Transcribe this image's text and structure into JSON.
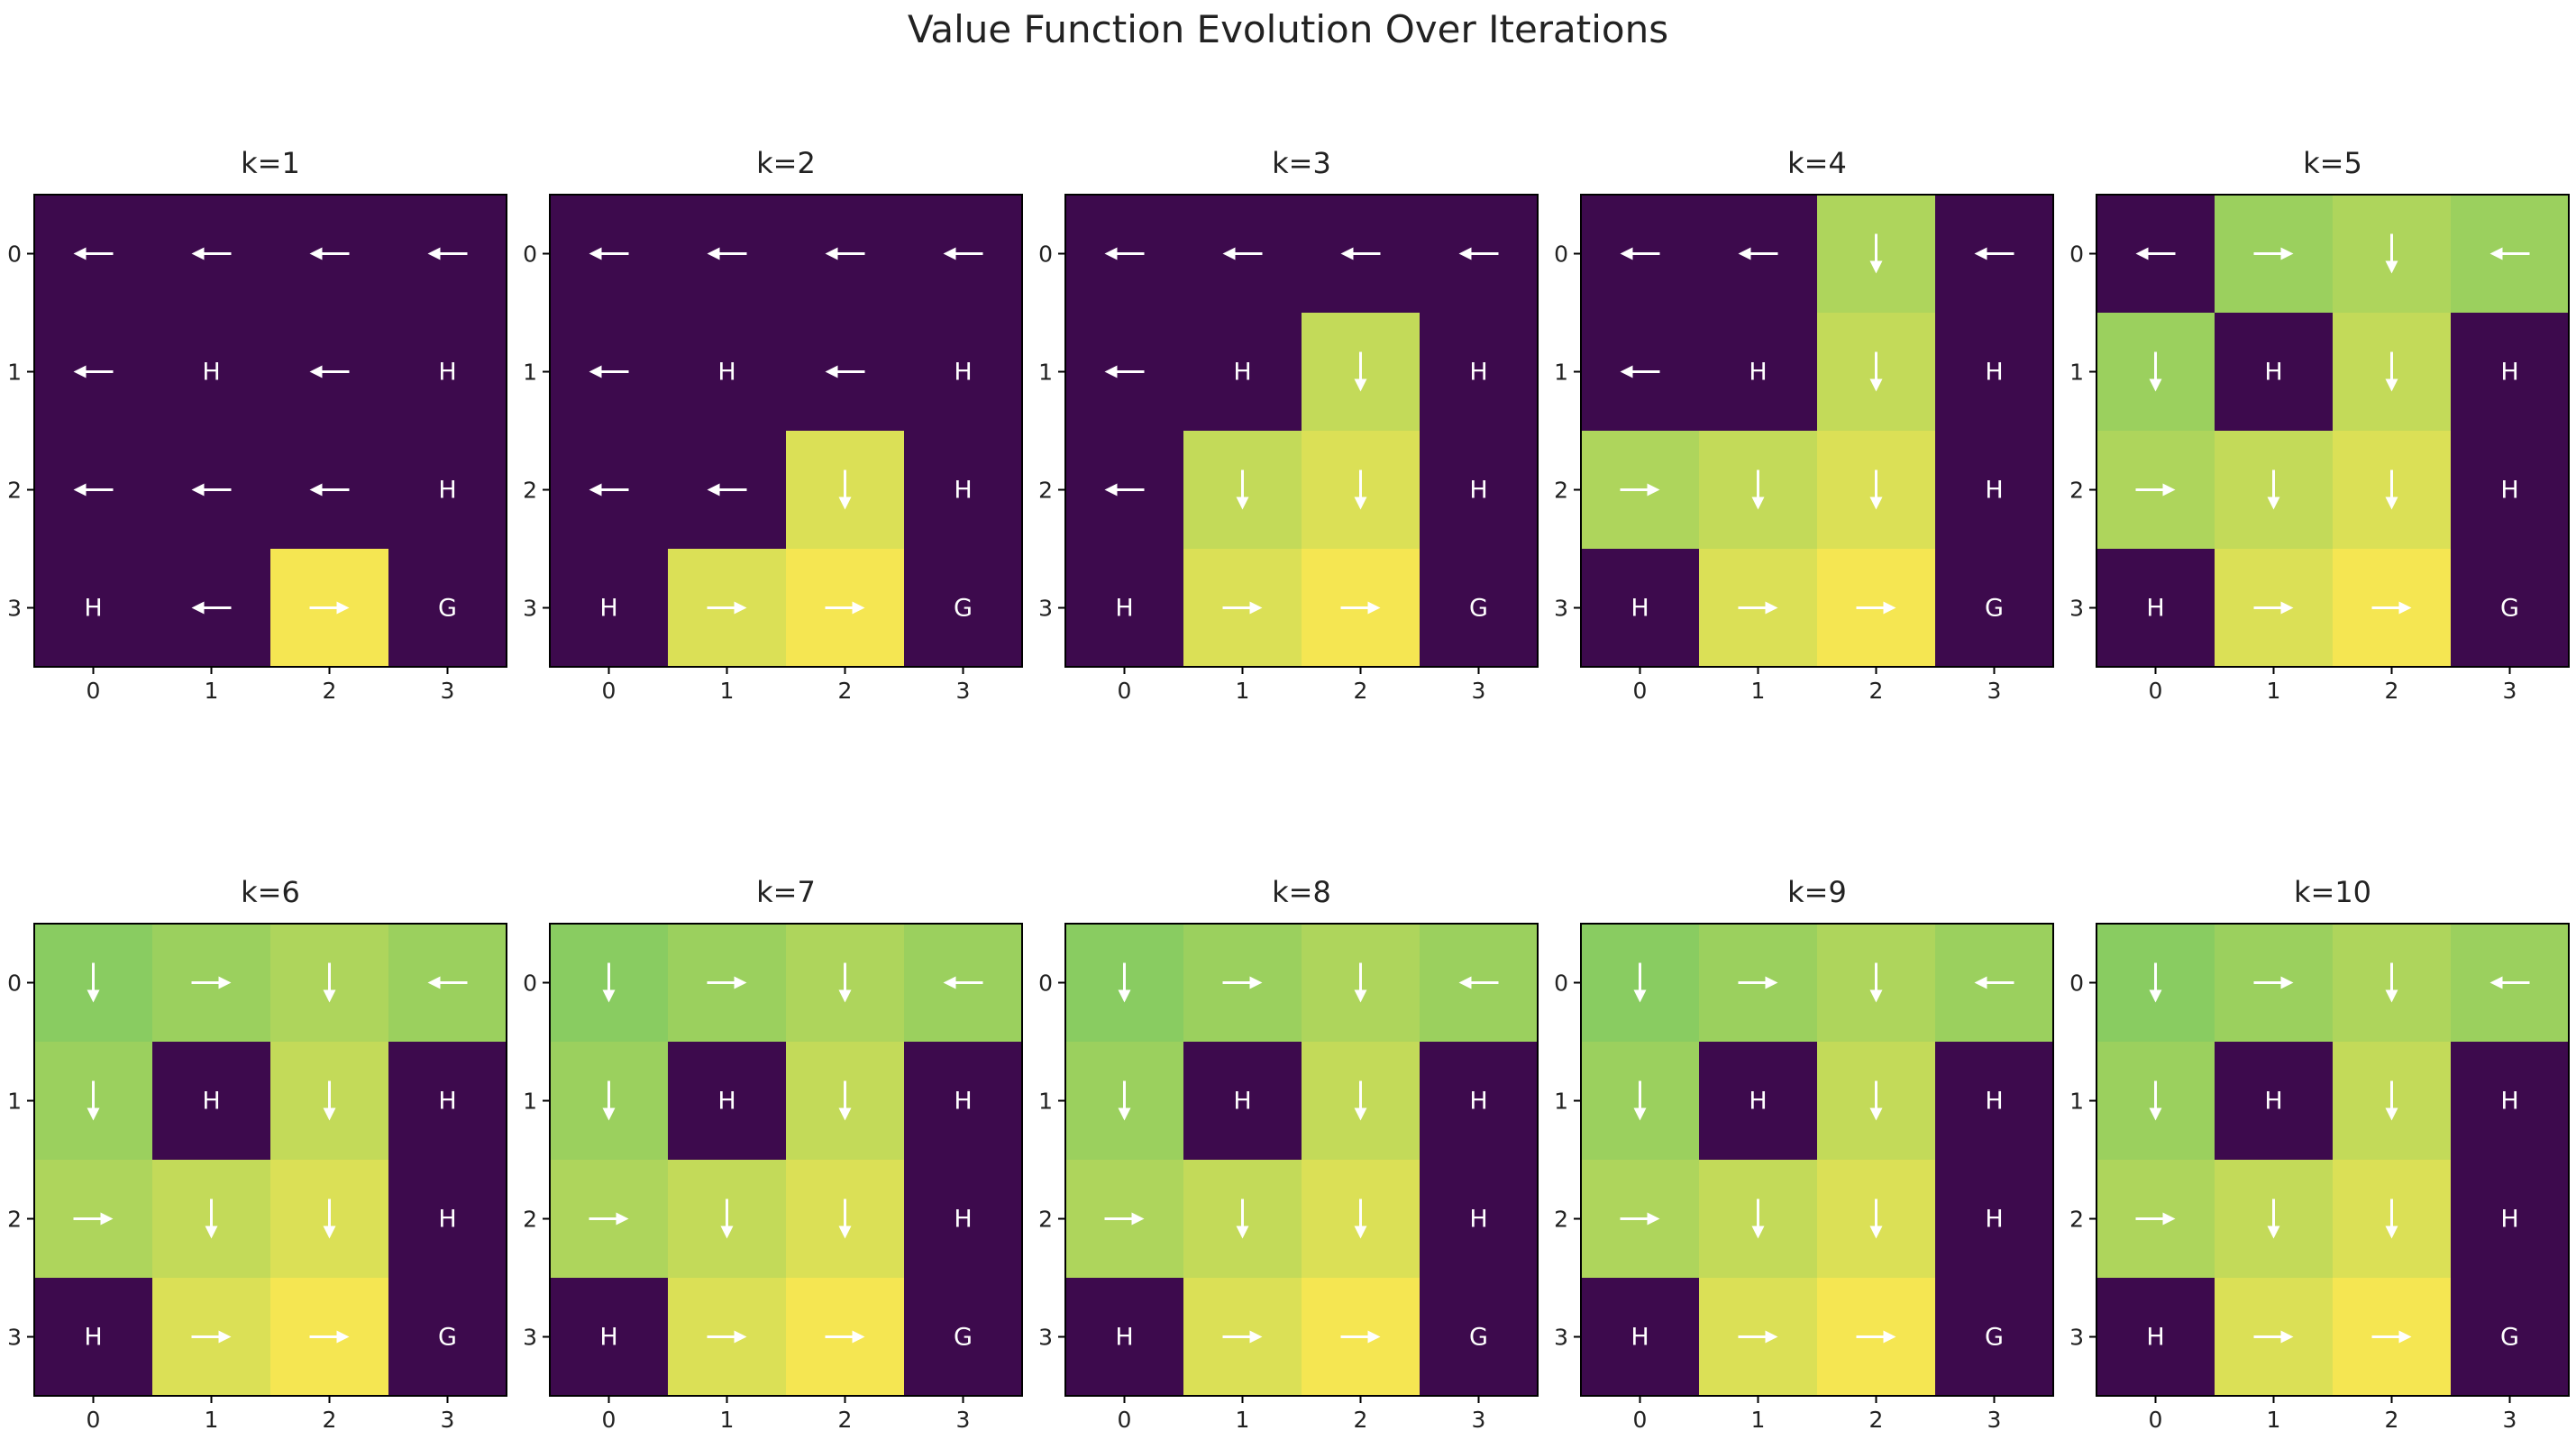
{
  "title": "Value Function Evolution Over Iterations",
  "colors": {
    "dark": "#3d0a4d",
    "scale_low": "#7ec962",
    "scale_high": "#f5e652",
    "arrow": "#ffffff",
    "label_text": "#ffffff",
    "axis_text": "#222222"
  },
  "chart_data": {
    "type": "heatmap",
    "ticks": [
      "0",
      "1",
      "2",
      "3"
    ],
    "vmin": 0,
    "vmax": 1,
    "panels": [
      {
        "title": "k=1",
        "values": [
          [
            0,
            0,
            0,
            0
          ],
          [
            0,
            0,
            0,
            0
          ],
          [
            0,
            0,
            0,
            0
          ],
          [
            0,
            0,
            1.0,
            0
          ]
        ],
        "policy": [
          [
            "←",
            "←",
            "←",
            "←"
          ],
          [
            "←",
            "H",
            "←",
            "H"
          ],
          [
            "←",
            "←",
            "←",
            "H"
          ],
          [
            "H",
            "←",
            "→",
            "G"
          ]
        ]
      },
      {
        "title": "k=2",
        "values": [
          [
            0,
            0,
            0,
            0
          ],
          [
            0,
            0,
            0,
            0
          ],
          [
            0,
            0,
            0.9,
            0
          ],
          [
            0,
            0.9,
            1.0,
            0
          ]
        ],
        "policy": [
          [
            "←",
            "←",
            "←",
            "←"
          ],
          [
            "←",
            "H",
            "←",
            "H"
          ],
          [
            "←",
            "←",
            "↓",
            "H"
          ],
          [
            "H",
            "→",
            "→",
            "G"
          ]
        ]
      },
      {
        "title": "k=3",
        "values": [
          [
            0,
            0,
            0,
            0
          ],
          [
            0,
            0,
            0.81,
            0
          ],
          [
            0,
            0.81,
            0.9,
            0
          ],
          [
            0,
            0.9,
            1.0,
            0
          ]
        ],
        "policy": [
          [
            "←",
            "←",
            "←",
            "←"
          ],
          [
            "←",
            "H",
            "↓",
            "H"
          ],
          [
            "←",
            "↓",
            "↓",
            "H"
          ],
          [
            "H",
            "→",
            "→",
            "G"
          ]
        ]
      },
      {
        "title": "k=4",
        "values": [
          [
            0,
            0,
            0.73,
            0
          ],
          [
            0,
            0,
            0.81,
            0
          ],
          [
            0.73,
            0.81,
            0.9,
            0
          ],
          [
            0,
            0.9,
            1.0,
            0
          ]
        ],
        "policy": [
          [
            "←",
            "←",
            "↓",
            "←"
          ],
          [
            "←",
            "H",
            "↓",
            "H"
          ],
          [
            "→",
            "↓",
            "↓",
            "H"
          ],
          [
            "H",
            "→",
            "→",
            "G"
          ]
        ]
      },
      {
        "title": "k=5",
        "values": [
          [
            0,
            0.66,
            0.73,
            0.66
          ],
          [
            0.66,
            0,
            0.81,
            0
          ],
          [
            0.73,
            0.81,
            0.9,
            0
          ],
          [
            0,
            0.9,
            1.0,
            0
          ]
        ],
        "policy": [
          [
            "←",
            "→",
            "↓",
            "←"
          ],
          [
            "↓",
            "H",
            "↓",
            "H"
          ],
          [
            "→",
            "↓",
            "↓",
            "H"
          ],
          [
            "H",
            "→",
            "→",
            "G"
          ]
        ]
      },
      {
        "title": "k=6",
        "values": [
          [
            0.59,
            0.66,
            0.73,
            0.66
          ],
          [
            0.66,
            0,
            0.81,
            0
          ],
          [
            0.73,
            0.81,
            0.9,
            0
          ],
          [
            0,
            0.9,
            1.0,
            0
          ]
        ],
        "policy": [
          [
            "↓",
            "→",
            "↓",
            "←"
          ],
          [
            "↓",
            "H",
            "↓",
            "H"
          ],
          [
            "→",
            "↓",
            "↓",
            "H"
          ],
          [
            "H",
            "→",
            "→",
            "G"
          ]
        ]
      },
      {
        "title": "k=7",
        "values": [
          [
            0.59,
            0.66,
            0.73,
            0.66
          ],
          [
            0.66,
            0,
            0.81,
            0
          ],
          [
            0.73,
            0.81,
            0.9,
            0
          ],
          [
            0,
            0.9,
            1.0,
            0
          ]
        ],
        "policy": [
          [
            "↓",
            "→",
            "↓",
            "←"
          ],
          [
            "↓",
            "H",
            "↓",
            "H"
          ],
          [
            "→",
            "↓",
            "↓",
            "H"
          ],
          [
            "H",
            "→",
            "→",
            "G"
          ]
        ]
      },
      {
        "title": "k=8",
        "values": [
          [
            0.59,
            0.66,
            0.73,
            0.66
          ],
          [
            0.66,
            0,
            0.81,
            0
          ],
          [
            0.73,
            0.81,
            0.9,
            0
          ],
          [
            0,
            0.9,
            1.0,
            0
          ]
        ],
        "policy": [
          [
            "↓",
            "→",
            "↓",
            "←"
          ],
          [
            "↓",
            "H",
            "↓",
            "H"
          ],
          [
            "→",
            "↓",
            "↓",
            "H"
          ],
          [
            "H",
            "→",
            "→",
            "G"
          ]
        ]
      },
      {
        "title": "k=9",
        "values": [
          [
            0.59,
            0.66,
            0.73,
            0.66
          ],
          [
            0.66,
            0,
            0.81,
            0
          ],
          [
            0.73,
            0.81,
            0.9,
            0
          ],
          [
            0,
            0.9,
            1.0,
            0
          ]
        ],
        "policy": [
          [
            "↓",
            "→",
            "↓",
            "←"
          ],
          [
            "↓",
            "H",
            "↓",
            "H"
          ],
          [
            "→",
            "↓",
            "↓",
            "H"
          ],
          [
            "H",
            "→",
            "→",
            "G"
          ]
        ]
      },
      {
        "title": "k=10",
        "values": [
          [
            0.59,
            0.66,
            0.73,
            0.66
          ],
          [
            0.66,
            0,
            0.81,
            0
          ],
          [
            0.73,
            0.81,
            0.9,
            0
          ],
          [
            0,
            0.9,
            1.0,
            0
          ]
        ],
        "policy": [
          [
            "↓",
            "→",
            "↓",
            "←"
          ],
          [
            "↓",
            "H",
            "↓",
            "H"
          ],
          [
            "→",
            "↓",
            "↓",
            "H"
          ],
          [
            "H",
            "→",
            "→",
            "G"
          ]
        ]
      }
    ]
  }
}
